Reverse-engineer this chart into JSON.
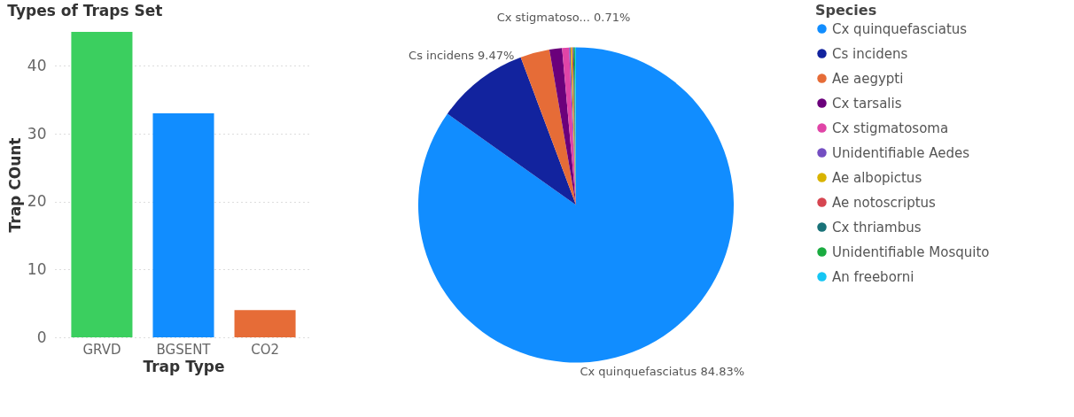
{
  "chart_data": [
    {
      "type": "bar",
      "title": "Types of Traps Set",
      "xlabel": "Trap Type",
      "ylabel": "Trap COunt",
      "categories": [
        "GRVD",
        "BGSENT",
        "CO2"
      ],
      "values": [
        45,
        33,
        4
      ],
      "colors": [
        "#3bcf5f",
        "#118dff",
        "#e66c37"
      ],
      "ylim": [
        0,
        45
      ],
      "yticks": [
        0,
        10,
        20,
        30,
        40
      ],
      "grid": "y"
    },
    {
      "type": "pie",
      "legend_title": "Species",
      "legend": "right",
      "categories": [
        "Cx quinquefasciatus",
        "Cs incidens",
        "Ae aegypti",
        "Cx tarsalis",
        "Cx stigmatosoma",
        "Unidentifiable Aedes",
        "Ae albopictus",
        "Ae notoscriptus",
        "Cx thriambus",
        "Unidentifiable Mosquito",
        "An freeborni"
      ],
      "values": [
        84.83,
        9.47,
        3.0,
        1.29,
        0.71,
        0.15,
        0.15,
        0.1,
        0.1,
        0.1,
        0.1
      ],
      "colors": [
        "#118dff",
        "#12239e",
        "#e66c37",
        "#6b007b",
        "#e044a7",
        "#744ec2",
        "#d9b300",
        "#d64550",
        "#197278",
        "#1aab40",
        "#15c6f4"
      ],
      "value_labels": [
        "Cx quinquefasciatus 84.83%",
        "Cs incidens 9.47%",
        null,
        null,
        "Cx stigmatoso... 0.71%",
        null,
        null,
        null,
        null,
        null,
        null
      ]
    }
  ]
}
